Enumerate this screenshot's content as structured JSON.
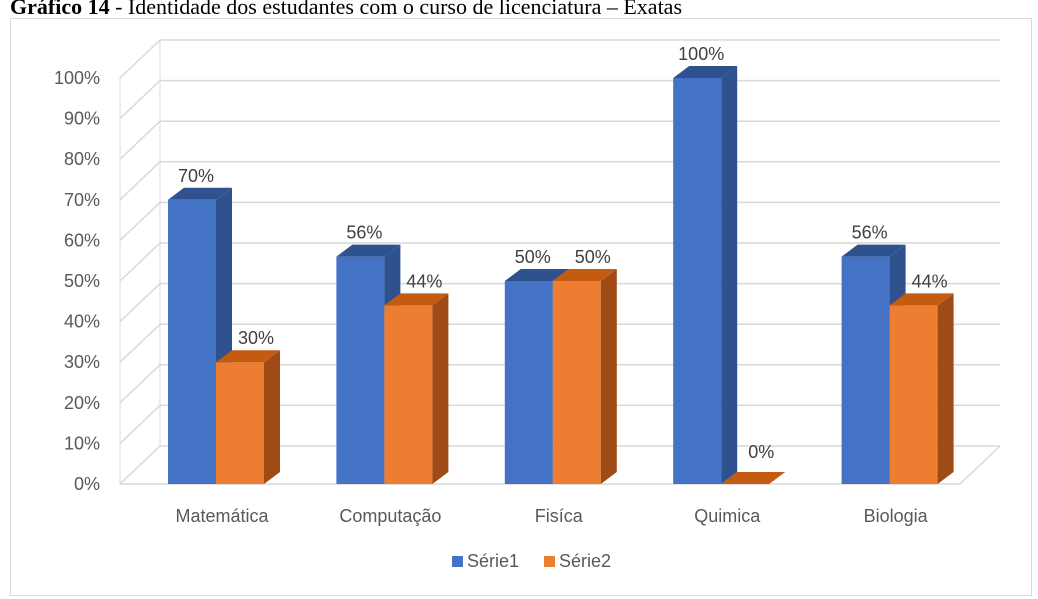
{
  "caption": {
    "prefix": "Gráfico 14",
    "text": " - Identidade dos estudantes com o curso de licenciatura – Exatas"
  },
  "chart_data": {
    "type": "bar",
    "categories": [
      "Matemática",
      "Computação",
      "Fisíca",
      "Quimica",
      "Biologia"
    ],
    "series": [
      {
        "name": "Série1",
        "values": [
          70,
          56,
          50,
          100,
          56
        ],
        "labels": [
          "70%",
          "56%",
          "50%",
          "100%",
          "56%"
        ],
        "color": "#4472c4",
        "side": "#2f528f",
        "top": "#2f528f"
      },
      {
        "name": "Série2",
        "values": [
          30,
          44,
          50,
          0,
          44
        ],
        "labels": [
          "30%",
          "44%",
          "50%",
          "0%",
          "44%"
        ],
        "color": "#ed7d31",
        "side": "#9e4b18",
        "top": "#c55a11"
      }
    ],
    "ylim": [
      0,
      100
    ],
    "yticks": [
      "0%",
      "10%",
      "20%",
      "30%",
      "40%",
      "50%",
      "60%",
      "70%",
      "80%",
      "90%",
      "100%"
    ],
    "grid": true,
    "legend": "bottom"
  }
}
